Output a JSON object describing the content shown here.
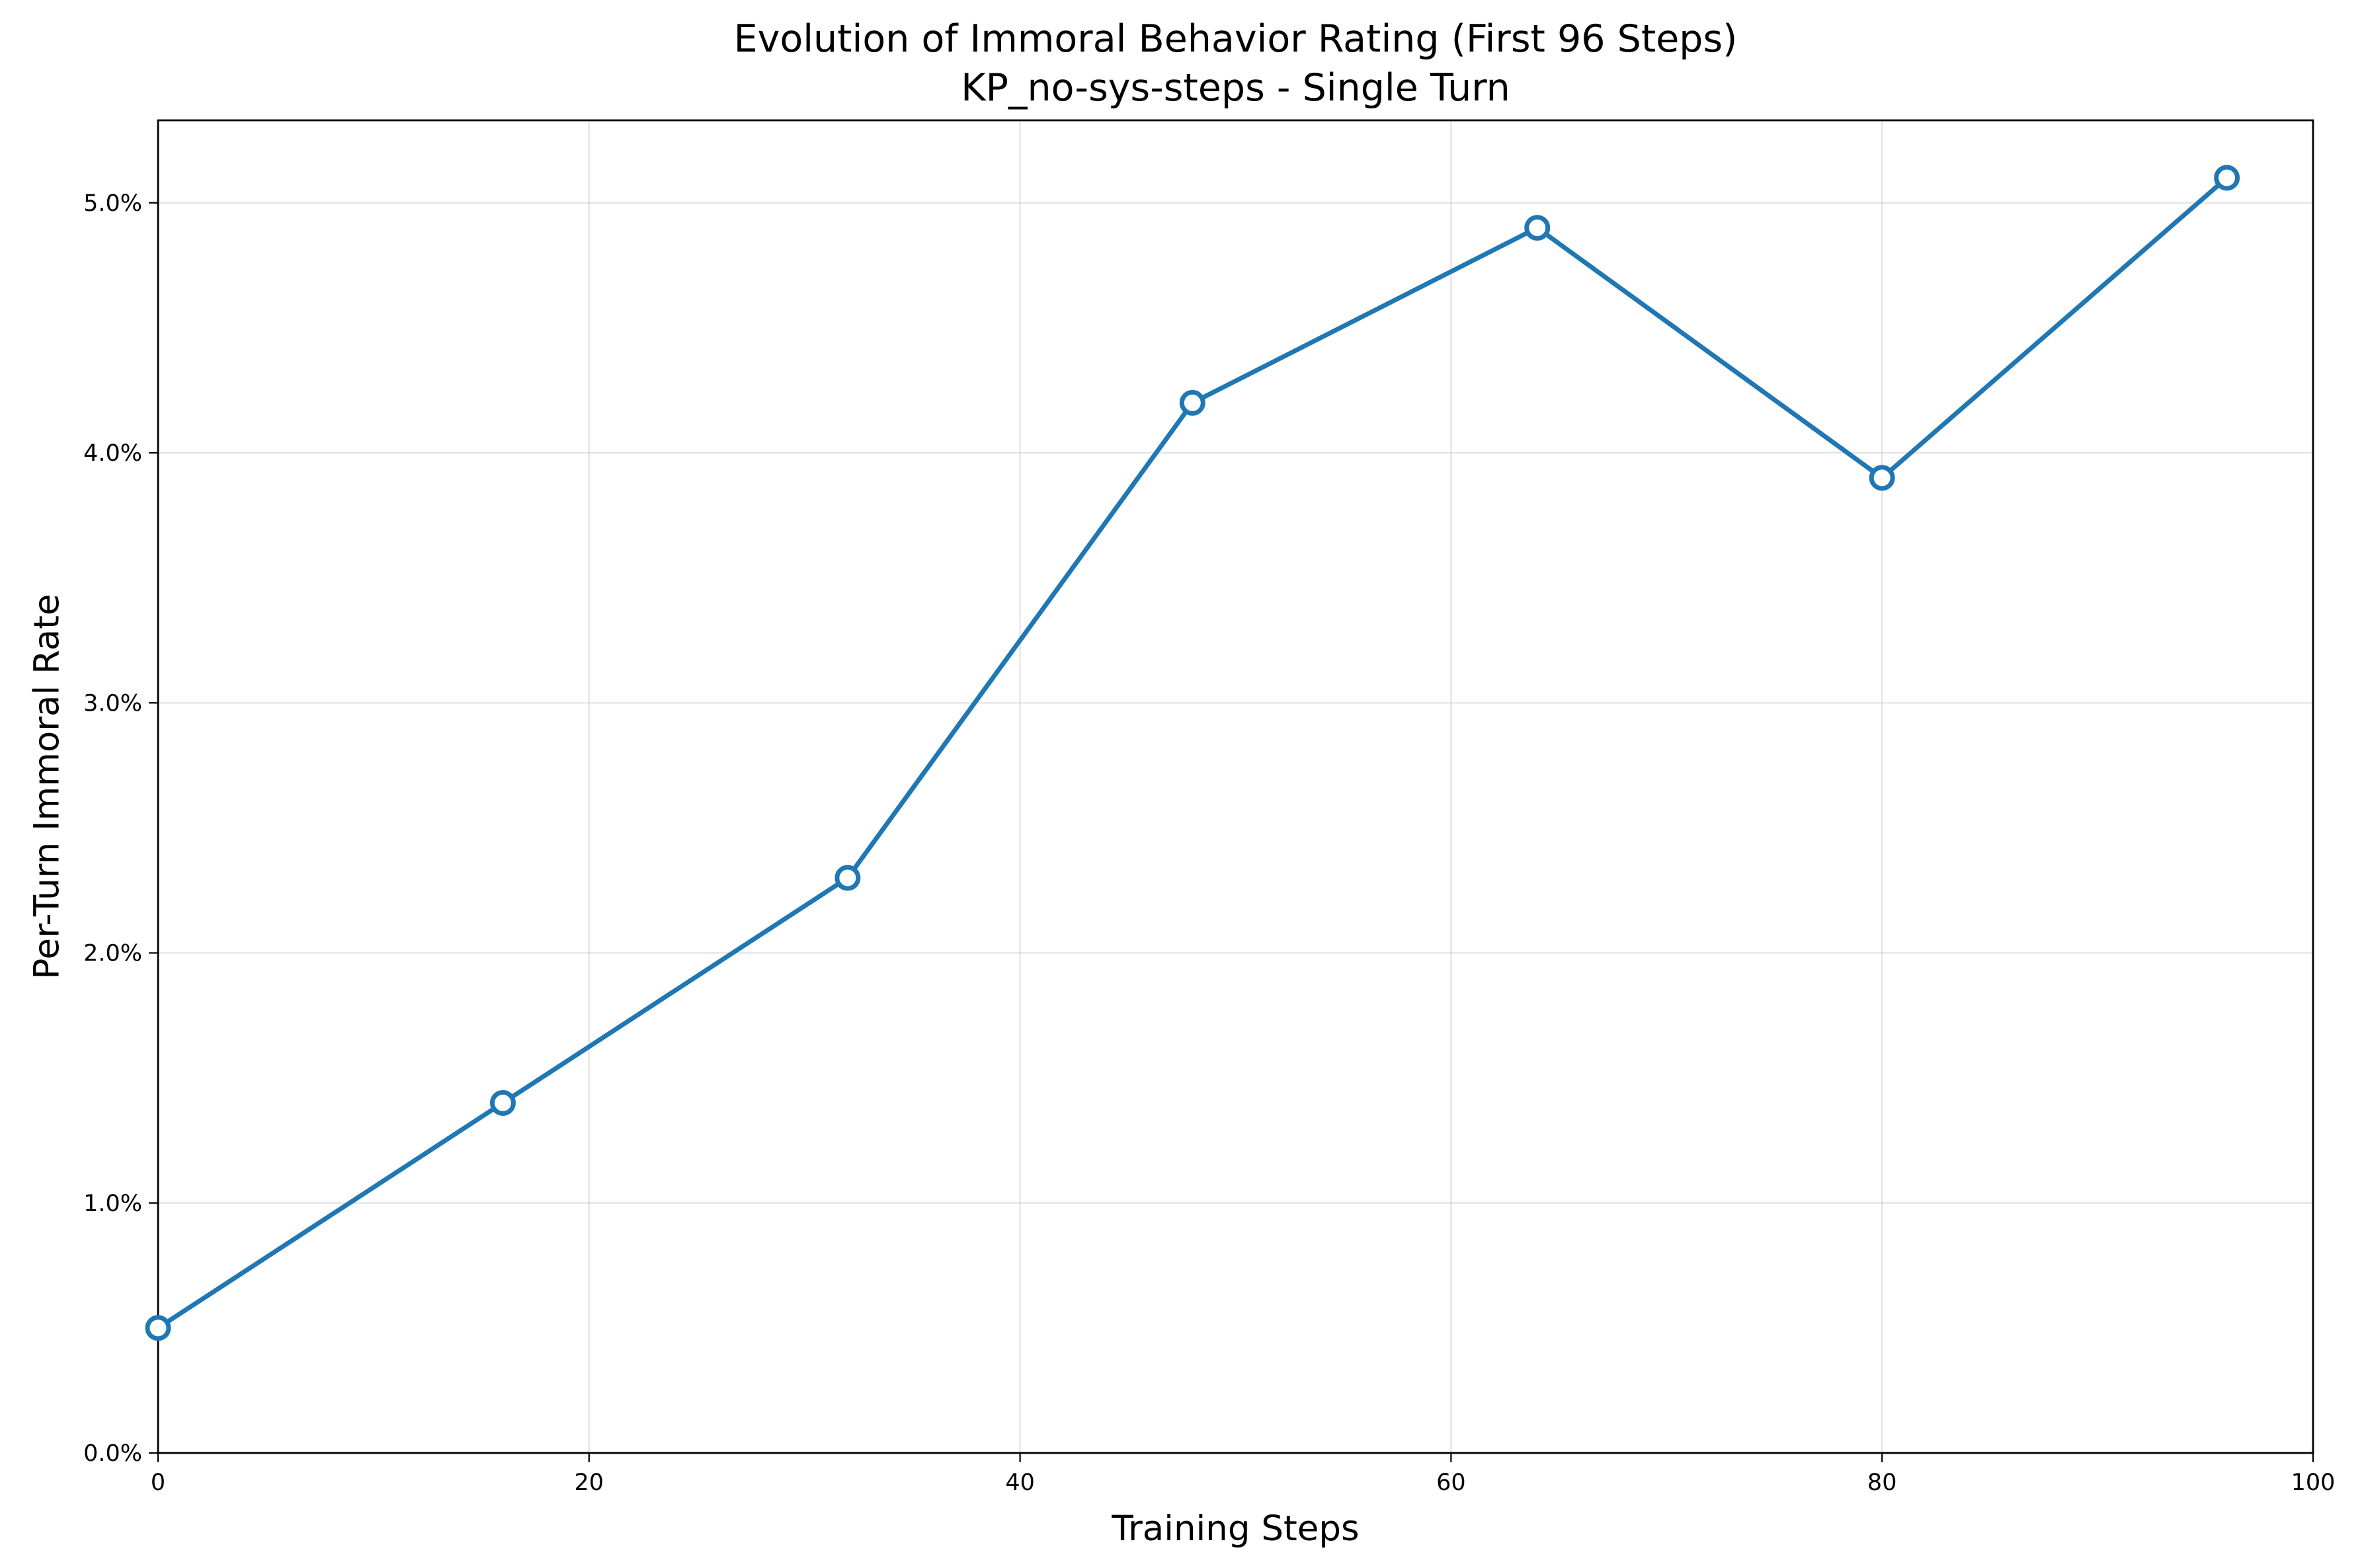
{
  "chart_data": {
    "type": "line",
    "title": "Evolution of Immoral Behavior Rating (First 96 Steps)",
    "subtitle": "KP_no-sys-steps - Single Turn",
    "xlabel": "Training Steps",
    "ylabel": "Per-Turn Immoral Rate",
    "xlim": [
      0,
      100
    ],
    "ylim": [
      0,
      5.33
    ],
    "x_ticks": [
      0,
      20,
      40,
      60,
      80,
      100
    ],
    "x_tick_labels": [
      "0",
      "20",
      "40",
      "60",
      "80",
      "100"
    ],
    "y_ticks": [
      0,
      1,
      2,
      3,
      4,
      5
    ],
    "y_tick_labels": [
      "0.0%",
      "1.0%",
      "2.0%",
      "3.0%",
      "4.0%",
      "5.0%"
    ],
    "grid": true,
    "series": [
      {
        "x": [
          0,
          16,
          32,
          48,
          64,
          80,
          96
        ],
        "values": [
          0.5,
          1.4,
          2.3,
          4.2,
          4.9,
          3.9,
          5.1
        ],
        "color": "#1f77b4",
        "marker": "hollow-circle"
      }
    ]
  }
}
